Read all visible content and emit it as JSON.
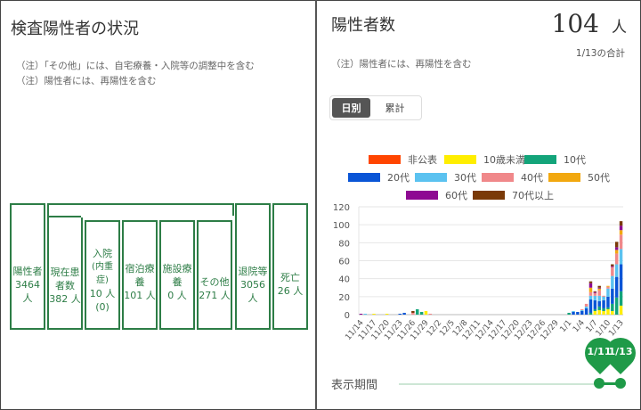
{
  "left": {
    "title": "検査陽性者の状況",
    "notes": [
      "（注）「その他」には、自宅療養・入院等の調整中を含む",
      "（注）陽性者には、再陽性を含む"
    ],
    "flow": {
      "positive": {
        "label": "陽性者",
        "value": "3464",
        "unit": "人"
      },
      "current": {
        "label1": "現在患",
        "label2": "者数",
        "value": "382 人"
      },
      "hospital": {
        "label1": "入院",
        "label2": "(内重症)",
        "value": "10 人",
        "severe": "(0)"
      },
      "hotel": {
        "label1": "宿泊療",
        "label2": "養",
        "value": "101 人"
      },
      "facility": {
        "label1": "施設療",
        "label2": "養",
        "value": "0 人"
      },
      "other": {
        "label": "その他",
        "value": "271 人"
      },
      "discharged": {
        "label": "退院等",
        "value": "3056",
        "unit": "人"
      },
      "death": {
        "label": "死亡",
        "value": "26 人"
      }
    }
  },
  "right": {
    "title": "陽性者数",
    "total_value": "104",
    "total_unit": "人",
    "total_caption": "1/13の合計",
    "note": "（注）陽性者には、再陽性を含む",
    "toggle": [
      {
        "label": "日別",
        "active": true
      },
      {
        "label": "累計",
        "active": false
      }
    ],
    "period_label": "表示期間",
    "slider": {
      "start_label": "1/11",
      "end_label": "1/13"
    }
  },
  "chart_data": {
    "type": "bar",
    "stacked": true,
    "ylim": [
      0,
      120
    ],
    "yticks": [
      0,
      20,
      40,
      60,
      80,
      100,
      120
    ],
    "grid": true,
    "legend": "top",
    "categories": [
      "11/14",
      "11/15",
      "11/16",
      "11/17",
      "11/18",
      "11/19",
      "11/20",
      "11/21",
      "11/22",
      "11/23",
      "11/24",
      "11/25",
      "11/26",
      "11/27",
      "11/28",
      "11/29",
      "11/30",
      "12/1",
      "12/2",
      "12/3",
      "12/4",
      "12/5",
      "12/6",
      "12/7",
      "12/8",
      "12/9",
      "12/10",
      "12/11",
      "12/12",
      "12/13",
      "12/14",
      "12/15",
      "12/16",
      "12/17",
      "12/18",
      "12/19",
      "12/20",
      "12/21",
      "12/22",
      "12/23",
      "12/24",
      "12/25",
      "12/26",
      "12/27",
      "12/28",
      "12/29",
      "12/30",
      "12/31",
      "1/1",
      "1/2",
      "1/3",
      "1/4",
      "1/5",
      "1/6",
      "1/7",
      "1/8",
      "1/9",
      "1/10",
      "1/11",
      "1/12",
      "1/13"
    ],
    "xticks": [
      "11/14",
      "11/17",
      "11/20",
      "11/23",
      "11/26",
      "11/29",
      "12/2",
      "12/5",
      "12/8",
      "12/11",
      "12/14",
      "12/17",
      "12/20",
      "12/23",
      "12/26",
      "12/29",
      "1/1",
      "1/4",
      "1/7",
      "1/10",
      "1/13"
    ],
    "series": [
      {
        "name": "非公表",
        "color": "#ff4500",
        "values": [
          0,
          0,
          0,
          0,
          0,
          0,
          0,
          0,
          0,
          0,
          0,
          0,
          0,
          0,
          0,
          0,
          0,
          0,
          0,
          0,
          0,
          0,
          0,
          0,
          0,
          0,
          0,
          0,
          0,
          0,
          0,
          0,
          0,
          0,
          0,
          0,
          0,
          0,
          0,
          0,
          0,
          0,
          0,
          0,
          0,
          0,
          0,
          0,
          0,
          0,
          0,
          0,
          0,
          0,
          0,
          0,
          0,
          0,
          0,
          0,
          0
        ]
      },
      {
        "name": "10歳未満",
        "color": "#ffee00",
        "values": [
          0,
          0,
          0,
          1,
          0,
          0,
          1,
          0,
          0,
          0,
          0,
          0,
          0,
          0,
          0,
          4,
          0,
          0,
          0,
          0,
          0,
          0,
          0,
          0,
          0,
          0,
          0,
          0,
          0,
          0,
          0,
          0,
          0,
          0,
          0,
          0,
          0,
          0,
          0,
          0,
          0,
          0,
          0,
          0,
          0,
          0,
          0,
          0,
          0,
          0,
          0,
          0,
          0,
          0,
          4,
          5,
          4,
          6,
          4,
          0,
          10
        ]
      },
      {
        "name": "10代",
        "color": "#13a47a",
        "values": [
          0,
          0,
          0,
          0,
          0,
          0,
          0,
          0,
          0,
          0,
          0,
          0,
          0,
          6,
          3,
          0,
          0,
          0,
          0,
          0,
          0,
          0,
          0,
          0,
          0,
          0,
          0,
          0,
          0,
          0,
          0,
          0,
          0,
          0,
          0,
          0,
          0,
          0,
          0,
          0,
          0,
          0,
          0,
          0,
          0,
          0,
          0,
          0,
          2,
          0,
          0,
          0,
          0,
          2,
          2,
          4,
          3,
          2,
          8,
          19,
          16
        ]
      },
      {
        "name": "20代",
        "color": "#0a55d6",
        "values": [
          0,
          0,
          0,
          0,
          0,
          0,
          0,
          0,
          0,
          1,
          2,
          0,
          0,
          0,
          0,
          0,
          0,
          0,
          0,
          0,
          0,
          0,
          0,
          0,
          0,
          0,
          0,
          0,
          0,
          0,
          0,
          0,
          0,
          0,
          0,
          0,
          0,
          0,
          0,
          0,
          0,
          0,
          0,
          0,
          0,
          0,
          0,
          0,
          0,
          3,
          3,
          4,
          7,
          15,
          10,
          6,
          9,
          12,
          17,
          23,
          30
        ]
      },
      {
        "name": "30代",
        "color": "#5bc2f0",
        "values": [
          0,
          1,
          0,
          0,
          0,
          0,
          0,
          0,
          0,
          0,
          0,
          0,
          0,
          0,
          0,
          0,
          0,
          0,
          0,
          0,
          0,
          0,
          0,
          0,
          0,
          0,
          0,
          0,
          0,
          0,
          0,
          0,
          0,
          0,
          0,
          0,
          0,
          0,
          0,
          0,
          0,
          0,
          0,
          0,
          0,
          0,
          0,
          0,
          0,
          1,
          0,
          1,
          2,
          4,
          5,
          6,
          4,
          9,
          14,
          14,
          17
        ]
      },
      {
        "name": "40代",
        "color": "#f0888a",
        "values": [
          0,
          0,
          0,
          0,
          0,
          0,
          0,
          0,
          0,
          0,
          0,
          0,
          2,
          0,
          0,
          0,
          1,
          0,
          0,
          0,
          0,
          0,
          0,
          0,
          0,
          0,
          0,
          0,
          0,
          0,
          0,
          0,
          0,
          0,
          0,
          0,
          0,
          0,
          0,
          0,
          0,
          0,
          0,
          0,
          0,
          0,
          0,
          0,
          0,
          0,
          0,
          1,
          3,
          4,
          3,
          6,
          1,
          2,
          10,
          12,
          16
        ]
      },
      {
        "name": "50代",
        "color": "#f2a80f",
        "values": [
          0,
          0,
          0,
          0,
          0,
          0,
          0,
          0,
          0,
          0,
          0,
          0,
          0,
          0,
          0,
          0,
          0,
          0,
          0,
          0,
          0,
          0,
          0,
          0,
          0,
          0,
          0,
          0,
          0,
          0,
          0,
          0,
          0,
          0,
          0,
          0,
          0,
          0,
          0,
          0,
          0,
          0,
          0,
          0,
          0,
          0,
          0,
          0,
          0,
          0,
          0,
          0,
          0,
          5,
          0,
          2,
          0,
          1,
          0,
          4,
          5
        ]
      },
      {
        "name": "60代",
        "color": "#8e0a92",
        "values": [
          1,
          0,
          0,
          0,
          0,
          0,
          0,
          0,
          0,
          0,
          0,
          0,
          0,
          0,
          0,
          0,
          0,
          0,
          0,
          0,
          0,
          0,
          0,
          0,
          0,
          0,
          0,
          0,
          0,
          0,
          0,
          0,
          0,
          0,
          0,
          0,
          0,
          0,
          0,
          0,
          0,
          0,
          0,
          0,
          0,
          0,
          0,
          0,
          0,
          0,
          0,
          0,
          0,
          5,
          1,
          1,
          0,
          0,
          1,
          3,
          5
        ]
      },
      {
        "name": "70代以上",
        "color": "#7a3a08",
        "values": [
          0,
          0,
          0,
          0,
          0,
          0,
          0,
          0,
          0,
          0,
          0,
          0,
          2,
          0,
          0,
          0,
          0,
          0,
          0,
          0,
          0,
          0,
          0,
          0,
          0,
          0,
          0,
          0,
          0,
          0,
          0,
          0,
          0,
          0,
          0,
          0,
          0,
          0,
          0,
          0,
          0,
          0,
          0,
          0,
          0,
          0,
          0,
          0,
          0,
          0,
          0,
          0,
          0,
          2,
          1,
          2,
          0,
          0,
          2,
          6,
          5
        ]
      }
    ]
  }
}
